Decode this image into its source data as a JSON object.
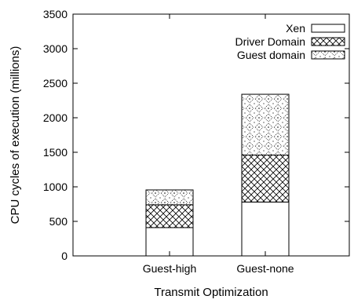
{
  "chart_data": {
    "type": "bar",
    "stacked": true,
    "categories": [
      "Guest-high",
      "Guest-none"
    ],
    "series": [
      {
        "name": "Xen",
        "values": [
          410,
          780
        ],
        "pattern": "none"
      },
      {
        "name": "Driver Domain",
        "values": [
          330,
          680
        ],
        "pattern": "crosshatch"
      },
      {
        "name": "Guest domain",
        "values": [
          215,
          880
        ],
        "pattern": "diamond-dots"
      }
    ],
    "xlabel": "Transmit Optimization",
    "ylabel": "CPU cycles of execution (millions)",
    "ylim": [
      0,
      3500
    ],
    "yticks": [
      0,
      500,
      1000,
      1500,
      2000,
      2500,
      3000,
      3500
    ],
    "grid": false,
    "legend_position": "top-right",
    "colors": {
      "axis": "#000000",
      "bar_fill": "#ffffff"
    }
  }
}
